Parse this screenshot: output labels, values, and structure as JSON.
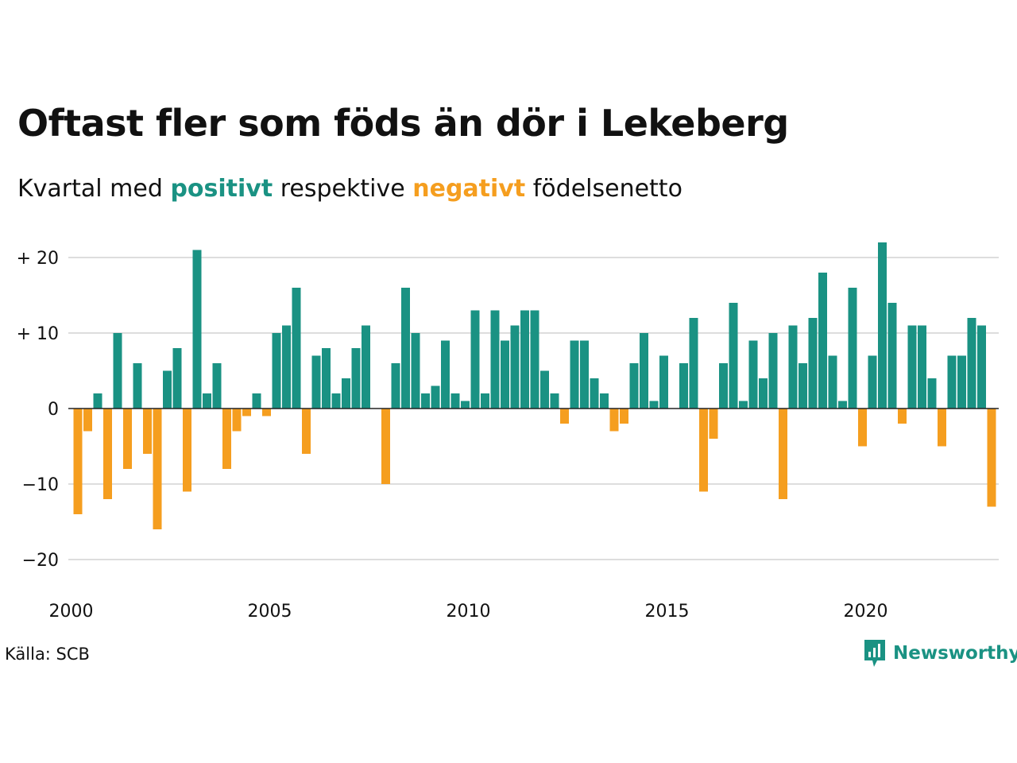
{
  "title": "Oftast fler som föds än dör i Lekeberg",
  "subtitle": {
    "prefix": "Kvartal med",
    "positive_word": "positivt",
    "middle": "respektive",
    "negative_word": "negativt",
    "suffix": "födelsenetto"
  },
  "source": "Källa: SCB",
  "logo": {
    "name": "Newsworthy",
    "icon": "newsworthy-bar-chart-icon"
  },
  "colors": {
    "positive": "#1a9283",
    "negative": "#f59e1f",
    "grid": "#dddddd",
    "text": "#111111"
  },
  "chart_data": {
    "type": "bar",
    "x_start": "2000 Q1",
    "frequency": "quarterly",
    "ylim": [
      -24,
      24
    ],
    "y_ticks": [
      {
        "value": 20,
        "label": "+ 20"
      },
      {
        "value": 10,
        "label": "+ 10"
      },
      {
        "value": 0,
        "label": "0"
      },
      {
        "value": -10,
        "label": "−10"
      },
      {
        "value": -20,
        "label": "−20"
      }
    ],
    "x_ticks": [
      "2000",
      "2005",
      "2010",
      "2015",
      "2020"
    ],
    "grid": true,
    "values": [
      -14,
      -3,
      2,
      -12,
      10,
      -8,
      6,
      -6,
      -16,
      5,
      8,
      -11,
      21,
      2,
      6,
      -8,
      -3,
      -1,
      2,
      -1,
      10,
      11,
      16,
      -6,
      7,
      8,
      2,
      4,
      8,
      11,
      0,
      -10,
      6,
      16,
      10,
      2,
      3,
      9,
      2,
      1,
      13,
      2,
      13,
      9,
      11,
      13,
      13,
      5,
      2,
      -2,
      9,
      9,
      4,
      2,
      -3,
      -2,
      6,
      10,
      1,
      7,
      0,
      6,
      12,
      -11,
      -4,
      6,
      14,
      1,
      9,
      4,
      10,
      -12,
      11,
      6,
      12,
      18,
      7,
      1,
      16,
      -5,
      7,
      22,
      14,
      -2,
      11,
      11,
      4,
      -5,
      7,
      7,
      12,
      11,
      -13
    ]
  }
}
